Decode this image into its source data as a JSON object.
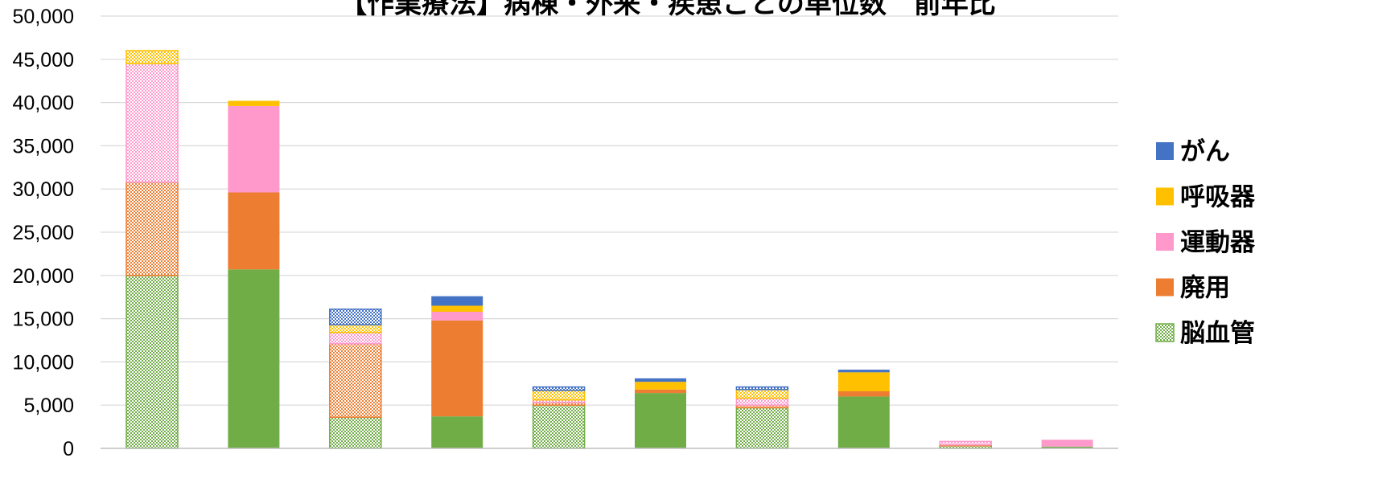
{
  "chart_data": {
    "type": "bar",
    "stacked": true,
    "title": "【作業療法】病棟・外来・疾患ごとの単位数　前年比",
    "xlabel": "",
    "ylabel": "",
    "ylim": [
      0,
      50000
    ],
    "y_step": 5000,
    "y_ticks": [
      "0",
      "5,000",
      "10,000",
      "15,000",
      "20,000",
      "25,000",
      "30,000",
      "35,000",
      "40,000",
      "45,000",
      "50,000"
    ],
    "grid": true,
    "legend_position": "right",
    "bar_count": 10,
    "hatched_bars": [
      0,
      2,
      4,
      6,
      8
    ],
    "series": [
      {
        "name": "脳血管",
        "color": "#70ad47",
        "values": [
          20000,
          20700,
          3600,
          3700,
          5000,
          6400,
          4700,
          6000,
          300,
          200
        ]
      },
      {
        "name": "廃用",
        "color": "#ed7d31",
        "values": [
          10800,
          8900,
          8500,
          11100,
          300,
          400,
          300,
          600,
          100,
          0
        ]
      },
      {
        "name": "運動器",
        "color": "#ff99cc",
        "values": [
          13700,
          10000,
          1300,
          1000,
          300,
          0,
          800,
          0,
          400,
          800
        ]
      },
      {
        "name": "呼吸器",
        "color": "#ffc000",
        "values": [
          1500,
          600,
          900,
          700,
          1100,
          900,
          1000,
          2200,
          0,
          0
        ]
      },
      {
        "name": "がん",
        "color": "#4472c4",
        "values": [
          0,
          0,
          1800,
          1100,
          400,
          400,
          300,
          300,
          0,
          0
        ]
      }
    ],
    "legend_order": [
      "がん",
      "呼吸器",
      "運動器",
      "廃用",
      "脳血管"
    ]
  }
}
